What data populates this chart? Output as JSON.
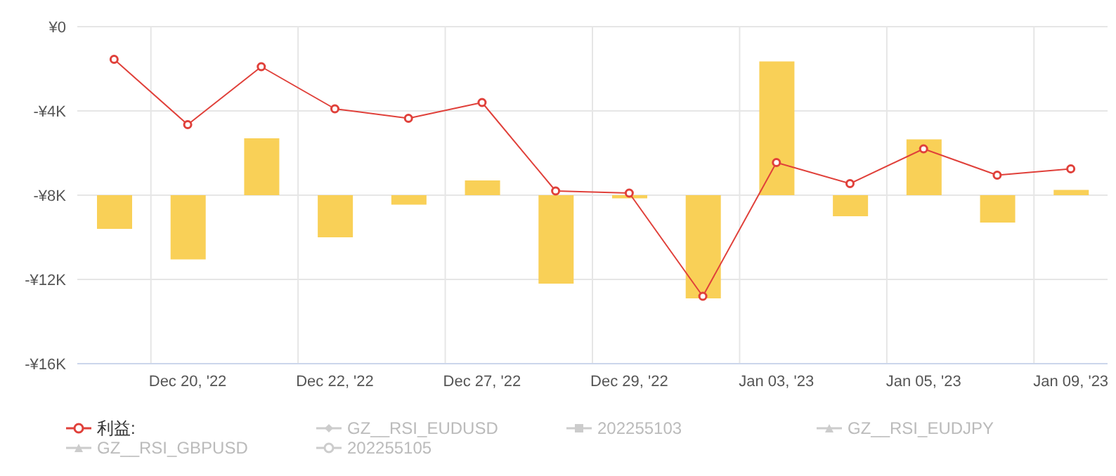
{
  "chart_data": {
    "type": "bar",
    "categories": [
      null,
      "Dec 20, '22",
      null,
      "Dec 22, '22",
      null,
      "Dec 27, '22",
      null,
      "Dec 29, '22",
      null,
      "Jan 03, '23",
      null,
      "Jan 05, '23",
      null,
      "Jan 09, '23"
    ],
    "ylim": [
      -16000,
      0
    ],
    "yticks": [
      {
        "value": -16000,
        "label": "-¥16K"
      },
      {
        "value": -12000,
        "label": "-¥12K"
      },
      {
        "value": -8000,
        "label": "-¥8K"
      },
      {
        "value": -4000,
        "label": "-¥4K"
      },
      {
        "value": 0,
        "label": "¥0"
      }
    ],
    "grid": true,
    "legend": "bottom",
    "series": [
      {
        "color": "#f9d057",
        "base": [
          -8000,
          -8000,
          -8000,
          -8000,
          -8000,
          -8000,
          -8000,
          -8000,
          -8000,
          -8000,
          -8000,
          -8000,
          -8000,
          -8000
        ],
        "values": [
          -1600,
          -3050,
          2700,
          -2000,
          -450,
          700,
          -4200,
          -150,
          -4900,
          6350,
          -1000,
          2650,
          -1300,
          250
        ]
      },
      {
        "type": "line",
        "name": "利益:",
        "color": "#e0403a",
        "marker": "circle",
        "values": [
          -1550,
          -4650,
          -1900,
          -3900,
          -4350,
          -3600,
          -7800,
          -7900,
          -12800,
          -6450,
          -7450,
          -5800,
          -7050,
          -6750
        ]
      },
      {
        "type": "line",
        "name": "GZ__RSI_EUDUSD",
        "color": "#cccccc",
        "marker": "diamond",
        "values": [
          null,
          null,
          null,
          null,
          null,
          null,
          null,
          null,
          null,
          null,
          null,
          null,
          null,
          null
        ]
      },
      {
        "type": "line",
        "name": "202255103",
        "color": "#cccccc",
        "marker": "square",
        "values": [
          null,
          null,
          null,
          null,
          null,
          null,
          null,
          null,
          null,
          null,
          null,
          null,
          null,
          null
        ]
      },
      {
        "type": "line",
        "name": "GZ__RSI_EUDJPY",
        "color": "#cccccc",
        "marker": "triangle",
        "values": [
          null,
          null,
          null,
          null,
          null,
          null,
          null,
          null,
          null,
          null,
          null,
          null,
          null,
          null
        ]
      },
      {
        "type": "line",
        "name": "GZ__RSI_GBPUSD",
        "color": "#cccccc",
        "marker": "triangle",
        "values": [
          null,
          null,
          null,
          null,
          null,
          null,
          null,
          null,
          null,
          null,
          null,
          null,
          null,
          null
        ]
      },
      {
        "type": "line",
        "name": "202255105",
        "color": "#cccccc",
        "marker": "circle",
        "values": [
          null,
          null,
          null,
          null,
          null,
          null,
          null,
          null,
          null,
          null,
          null,
          null,
          null,
          null
        ]
      }
    ]
  }
}
